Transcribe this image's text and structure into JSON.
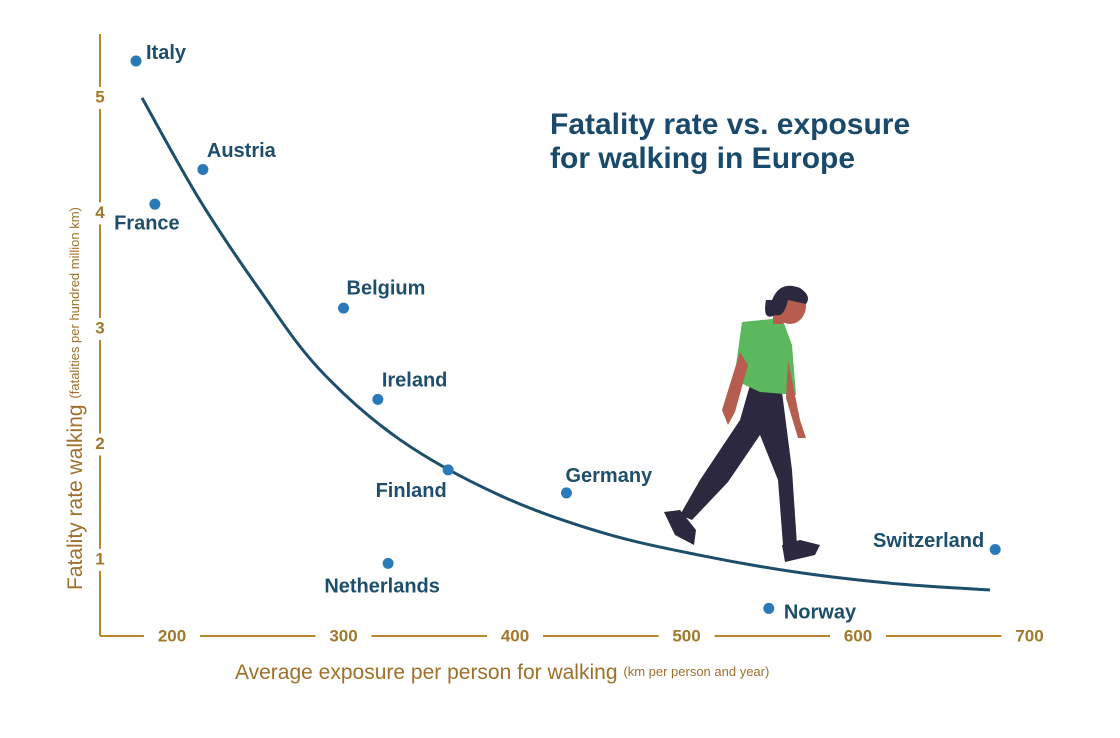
{
  "chart_data": {
    "type": "scatter",
    "title_lines": [
      "Fatality rate vs. exposure",
      "for walking in Europe"
    ],
    "x_label": "Average exposure per person for walking",
    "x_label_note": "(km per person and year)",
    "y_label": "Fatality rate walking",
    "y_label_note": "(fatalities per hundred million km)",
    "xlim": [
      158,
      700
    ],
    "xticks": [
      200,
      300,
      400,
      500,
      600,
      700
    ],
    "ylim": [
      0.35,
      5.55
    ],
    "yticks": [
      1,
      2,
      3,
      4,
      5
    ],
    "color": "#2a7ab8",
    "labels": [
      "Italy",
      "Austria",
      "France",
      "Belgium",
      "Ireland",
      "Finland",
      "Netherlands",
      "Germany",
      "Norway",
      "Switzerland"
    ],
    "x": [
      179,
      218,
      190,
      300,
      320,
      361,
      326,
      430,
      548,
      680
    ],
    "values": [
      5.32,
      4.38,
      4.08,
      3.18,
      2.39,
      1.78,
      0.97,
      1.58,
      0.58,
      1.09
    ],
    "trend": {
      "color": "#1d4e6b",
      "x": [
        182.5,
        216,
        251,
        286,
        333,
        391,
        450,
        508,
        566,
        625,
        677
      ],
      "values": [
        5.0,
        4.12,
        3.34,
        2.65,
        2.04,
        1.56,
        1.24,
        1.04,
        0.89,
        0.79,
        0.74
      ]
    }
  }
}
